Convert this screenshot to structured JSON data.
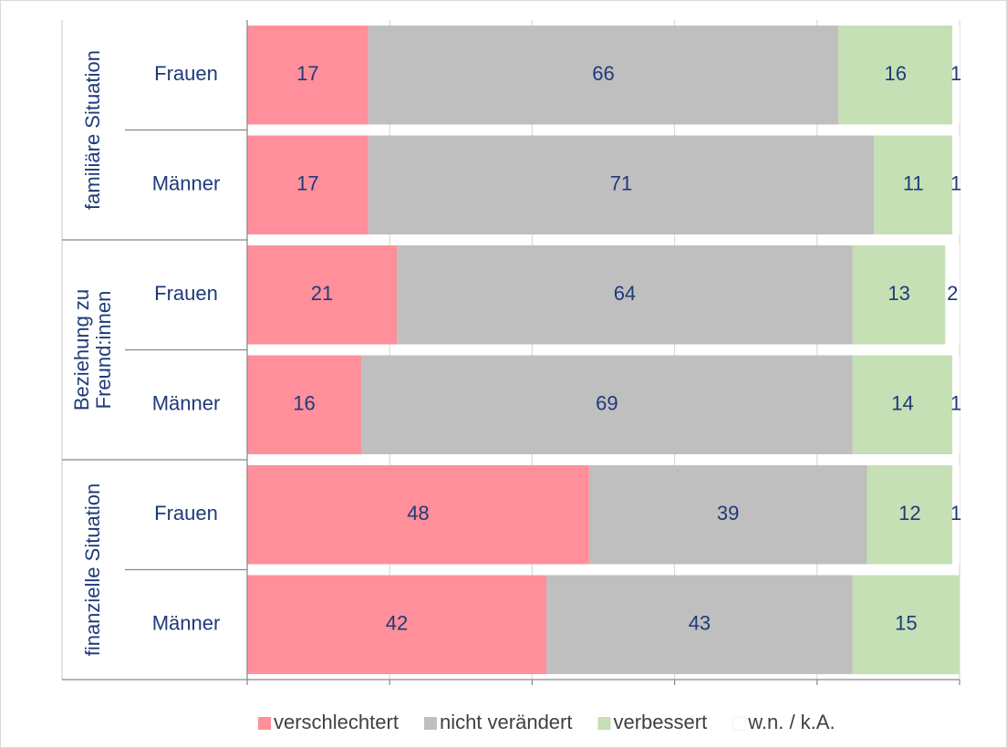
{
  "chart_data": {
    "type": "stacked_barh",
    "groups": [
      {
        "lines": [
          "familiäre Situation"
        ]
      },
      {
        "lines": [
          "Beziehung zu",
          "Freund:innen"
        ]
      },
      {
        "lines": [
          "finanzielle Situation"
        ]
      }
    ],
    "categories": [
      "Frauen",
      "Männer",
      "Frauen",
      "Männer",
      "Frauen",
      "Männer"
    ],
    "series": [
      {
        "name": "verschlechtert",
        "color": "#ff8f9a",
        "values": [
          17,
          17,
          21,
          16,
          48,
          42
        ]
      },
      {
        "name": "nicht verändert",
        "color": "#bfbfbf",
        "values": [
          66,
          71,
          64,
          69,
          39,
          43
        ]
      },
      {
        "name": "verbessert",
        "color": "#c5e0b4",
        "values": [
          16,
          11,
          13,
          14,
          12,
          15
        ]
      },
      {
        "name": "w.n. / k.A.",
        "color": "#ffffff",
        "values": [
          1,
          1,
          2,
          1,
          1,
          0
        ]
      }
    ],
    "xlim": [
      0,
      100
    ],
    "xticks": [
      0,
      20,
      40,
      60,
      80,
      100
    ],
    "grid": true,
    "legend": "bottom"
  }
}
